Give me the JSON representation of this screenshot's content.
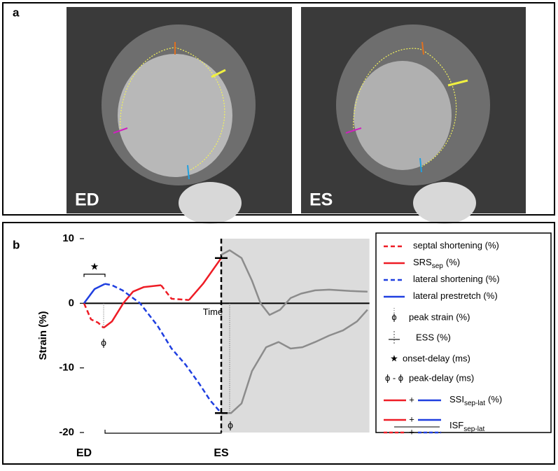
{
  "panel_a": {
    "label": "a",
    "images": [
      "ED",
      "ES"
    ]
  },
  "panel_b": {
    "label": "b"
  },
  "chart_data": {
    "type": "line",
    "ylabel": "Strain (%)",
    "ylim": [
      -20,
      10
    ],
    "yticks": [
      10,
      0,
      -10,
      -20
    ],
    "xlim": [
      0,
      208
    ],
    "xticks": [
      {
        "value": 0,
        "label": "ED"
      },
      {
        "value": 100,
        "label": "ES"
      }
    ],
    "series": [
      {
        "name": "septal shortening (%)",
        "color": "#ee1c25",
        "dashed": true,
        "x": [
          0,
          5.1,
          10.2,
          14.3,
          20.4,
          28.6,
          35.7,
          43.4,
          56.1,
          63.8,
          76.5,
          86.7,
          100
        ],
        "values": [
          0,
          -2.5,
          -3,
          -3.8,
          null,
          null,
          null,
          null,
          2.8,
          0.7,
          0.5,
          null,
          null
        ]
      },
      {
        "name": "SRS",
        "name_sub": "sep",
        "name_suffix": "(%)",
        "color": "#ee1c25",
        "dashed": false,
        "x": [
          0,
          5.1,
          10.2,
          14.3,
          20.4,
          28.6,
          35.7,
          43.4,
          56.1,
          63.8,
          76.5,
          86.7,
          100
        ],
        "values": [
          null,
          null,
          null,
          -3.8,
          -2.8,
          0,
          1.8,
          2.5,
          2.8,
          null,
          0.5,
          3,
          7
        ]
      },
      {
        "name": "lateral shortening (%)",
        "color": "#1f3fe0",
        "dashed": true,
        "x": [
          0,
          7.7,
          15.3,
          20.4,
          28.1,
          40.8,
          53.6,
          63.8,
          74,
          84.2,
          91.8,
          100
        ],
        "values": [
          null,
          null,
          3,
          2.8,
          2,
          0,
          -3.5,
          -7,
          -9.5,
          -12.5,
          -15,
          -17
        ]
      },
      {
        "name": "lateral prestretch (%)",
        "color": "#1f3fe0",
        "dashed": false,
        "x": [
          0,
          7.7,
          15.3,
          20.4,
          28.1,
          40.8,
          53.6,
          63.8,
          74,
          84.2,
          91.8,
          100
        ],
        "values": [
          0,
          2.2,
          3,
          null,
          null,
          null,
          null,
          null,
          null,
          null,
          null,
          null
        ]
      },
      {
        "color": "#8c8c8c",
        "dashed": false,
        "x": [
          100,
          106.1,
          114.8,
          122.4,
          128.6,
          135.2,
          142.9,
          150.5,
          158.2,
          168.4,
          178.6,
          193.9,
          206.6
        ],
        "values": [
          7.5,
          8.2,
          7,
          3.5,
          0,
          -1.8,
          -1,
          0.8,
          1.5,
          2,
          2.1,
          1.9,
          1.8
        ]
      },
      {
        "color": "#8c8c8c",
        "dashed": false,
        "x": [
          100,
          107.1,
          114.8,
          122.4,
          132.7,
          141.8,
          150.5,
          159.2,
          168.4,
          178.6,
          188.8,
          199,
          206.6
        ],
        "values": [
          -17,
          -17,
          -15.5,
          -10.5,
          -6.8,
          -6,
          -7,
          -6.8,
          -6,
          -5,
          -4.2,
          -2.8,
          -1
        ]
      }
    ],
    "annotations": {
      "time": "Time",
      "star": "★",
      "phi": "ϕ"
    },
    "legend_extra": [
      {
        "symbol": "ϕ",
        "label": "peak strain (%)"
      },
      {
        "label": "ESS (%)"
      },
      {
        "symbol": "★",
        "label": "onset-delay (ms)"
      },
      {
        "symbol": "ϕ - ϕ",
        "label": "peak-delay (ms)"
      },
      {
        "symbol": "+",
        "label": "SSI",
        "label_sub": "sep-lat",
        "label_suffix": "(%)"
      },
      {
        "symbol": "+",
        "symbol2": "+",
        "label": "ISF",
        "label_sub": "sep-lat"
      }
    ]
  }
}
